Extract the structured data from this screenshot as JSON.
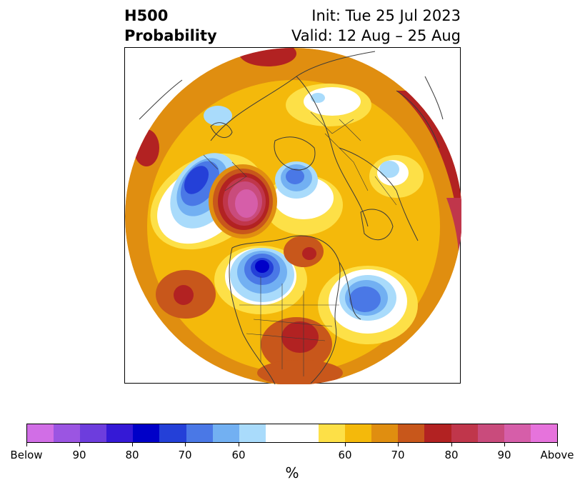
{
  "title": {
    "line1_left": "H500",
    "line2_left": "Probability",
    "line1_right": "Init: Tue 25 Jul 2023",
    "line2_right": "Valid: 12 Aug – 25 Aug"
  },
  "colorbar": {
    "unit": "%",
    "colors": [
      "#d16ee6",
      "#9b55e2",
      "#6d3ddd",
      "#3519d6",
      "#0000c8",
      "#2440d8",
      "#4a78e6",
      "#72b0f2",
      "#a9dbfb",
      "#ffffff",
      "#ffffff",
      "#fde047",
      "#f4b90b",
      "#e08e10",
      "#c8571b",
      "#b22222",
      "#c0364b",
      "#c94b7c",
      "#d65ea9",
      "#e673dc"
    ],
    "tick_labels": [
      "Below",
      "90",
      "80",
      "70",
      "60",
      "60",
      "70",
      "80",
      "90",
      "Above"
    ]
  },
  "legend_ticks": {
    "below": "Below",
    "b90": "90",
    "b80": "80",
    "b70": "70",
    "b60": "60",
    "a60": "60",
    "a70": "70",
    "a80": "80",
    "a90": "90",
    "above": "Above"
  }
}
